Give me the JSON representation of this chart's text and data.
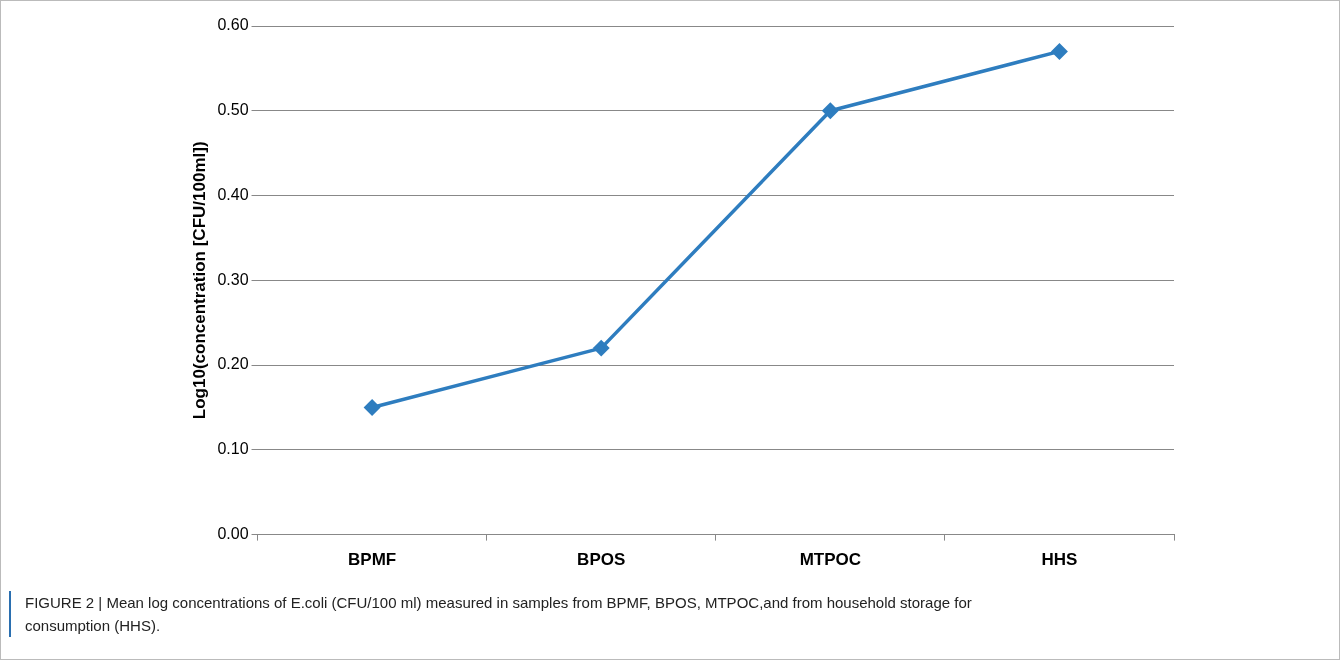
{
  "chart_data": {
    "type": "line",
    "ylabel": "Log10(concentration [CFU/100ml])",
    "categories": [
      "BPMF",
      "BPOS",
      "MTPOC",
      "HHS"
    ],
    "series": [
      {
        "color": "#2e7dbf",
        "values": [
          0.15,
          0.22,
          0.5,
          0.57
        ]
      }
    ],
    "ylim": [
      0,
      0.6
    ],
    "yticks": [
      {
        "value": 0,
        "label": "0.00"
      },
      {
        "value": 0.1,
        "label": "0.10"
      },
      {
        "value": 0.2,
        "label": "0.20"
      },
      {
        "value": 0.3,
        "label": "0.30"
      },
      {
        "value": 0.4,
        "label": "0.40"
      },
      {
        "value": 0.5,
        "label": "0.50"
      },
      {
        "value": 0.6,
        "label": "0.60"
      }
    ],
    "grid": "y",
    "legend": false,
    "marker": "diamond",
    "line_style": "solid",
    "annotations": [
      "FIGURE 2 | Mean log concentrations of E.coli (CFU/100 ml) measured in samples from BPMF, BPOS, MTPOC,and from household storage for consumption (HHS)."
    ]
  }
}
